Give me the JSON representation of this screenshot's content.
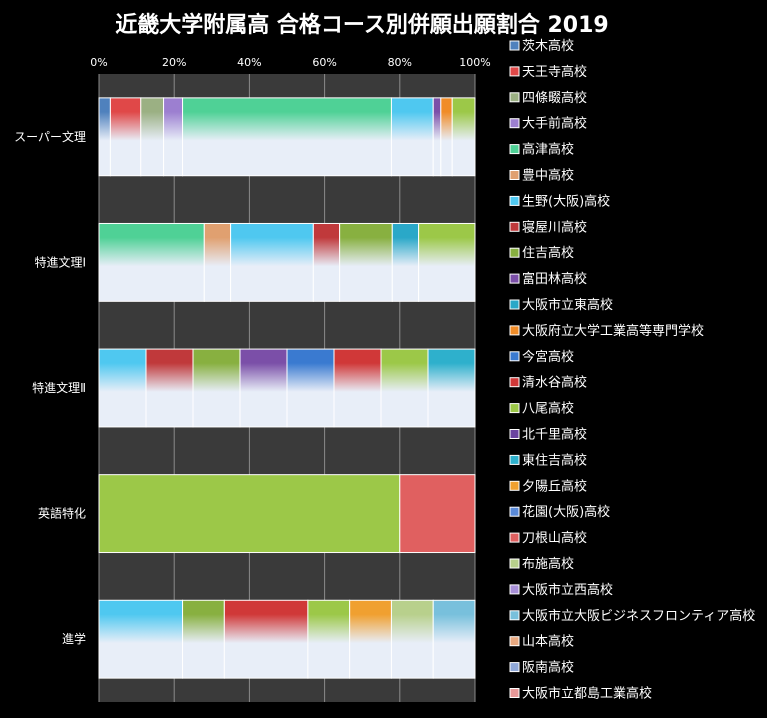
{
  "chart_data": {
    "type": "bar",
    "orientation": "horizontal",
    "stacked": "percent",
    "title": "近畿大学附属高 合格コース別併願出願割合 2019",
    "xlabel": "",
    "ylabel": "",
    "xlim": [
      0,
      100
    ],
    "x_ticks": [
      "0%",
      "20%",
      "40%",
      "60%",
      "80%",
      "100%"
    ],
    "grid": true,
    "legend_position": "right",
    "categories": [
      "スーパー文理",
      "特進文理Ⅰ",
      "特進文理Ⅱ",
      "英語特化",
      "進学"
    ],
    "series": [
      {
        "name": "茨木高校",
        "color": "#4f81bd",
        "values": [
          3,
          0,
          0,
          0,
          0
        ]
      },
      {
        "name": "天王寺高校",
        "color": "#e04848",
        "values": [
          8,
          0,
          0,
          0,
          0
        ]
      },
      {
        "name": "四條畷高校",
        "color": "#9bb083",
        "values": [
          6,
          0,
          0,
          0,
          0
        ]
      },
      {
        "name": "大手前高校",
        "color": "#9c7fd0",
        "values": [
          5,
          0,
          0,
          0,
          0
        ]
      },
      {
        "name": "高津高校",
        "color": "#4fd196",
        "values": [
          55,
          28,
          0,
          0,
          0
        ]
      },
      {
        "name": "豊中高校",
        "color": "#e0a070",
        "values": [
          0,
          7,
          0,
          0,
          0
        ]
      },
      {
        "name": "生野(大阪)高校",
        "color": "#4fc8f0",
        "values": [
          11,
          22,
          10,
          0,
          22
        ]
      },
      {
        "name": "寝屋川高校",
        "color": "#c0393b",
        "values": [
          0,
          7,
          10,
          0,
          0
        ]
      },
      {
        "name": "住吉高校",
        "color": "#88b040",
        "values": [
          0,
          14,
          10,
          0,
          11
        ]
      },
      {
        "name": "富田林高校",
        "color": "#7b4fa8",
        "values": [
          2,
          0,
          10,
          0,
          0
        ]
      },
      {
        "name": "大阪市立東高校",
        "color": "#2aa8c8",
        "values": [
          0,
          7,
          0,
          0,
          0
        ]
      },
      {
        "name": "大阪府立大学工業高等専門学校",
        "color": "#f08c28",
        "values": [
          3,
          0,
          0,
          0,
          0
        ]
      },
      {
        "name": "今宮高校",
        "color": "#3a7ad0",
        "values": [
          0,
          0,
          10,
          0,
          0
        ]
      },
      {
        "name": "清水谷高校",
        "color": "#d03838",
        "values": [
          0,
          0,
          10,
          0,
          22
        ]
      },
      {
        "name": "八尾高校",
        "color": "#9cc848",
        "values": [
          6,
          15,
          10,
          80,
          11
        ]
      },
      {
        "name": "北千里高校",
        "color": "#6a44a0",
        "values": [
          0,
          0,
          0,
          0,
          0
        ]
      },
      {
        "name": "東住吉高校",
        "color": "#2eb0cc",
        "values": [
          0,
          0,
          10,
          0,
          0
        ]
      },
      {
        "name": "夕陽丘高校",
        "color": "#f0a030",
        "values": [
          0,
          0,
          0,
          0,
          11
        ]
      },
      {
        "name": "花園(大阪)高校",
        "color": "#5a8ad8",
        "values": [
          0,
          0,
          0,
          0,
          0
        ]
      },
      {
        "name": "刀根山高校",
        "color": "#e06060",
        "values": [
          0,
          0,
          0,
          20,
          0
        ]
      },
      {
        "name": "布施高校",
        "color": "#b8d08c",
        "values": [
          0,
          0,
          0,
          0,
          11
        ]
      },
      {
        "name": "大阪市立西高校",
        "color": "#a890d8",
        "values": [
          0,
          0,
          0,
          0,
          0
        ]
      },
      {
        "name": "大阪市立大阪ビジネスフロンティア高校",
        "color": "#78c0dc",
        "values": [
          0,
          0,
          0,
          0,
          11
        ]
      },
      {
        "name": "山本高校",
        "color": "#e8a880",
        "values": [
          0,
          0,
          0,
          0,
          0
        ]
      },
      {
        "name": "阪南高校",
        "color": "#8fa8d8",
        "values": [
          0,
          0,
          0,
          0,
          0
        ]
      },
      {
        "name": "大阪市立都島工業高校",
        "color": "#e89898",
        "values": [
          0,
          0,
          0,
          0,
          0
        ]
      }
    ]
  }
}
